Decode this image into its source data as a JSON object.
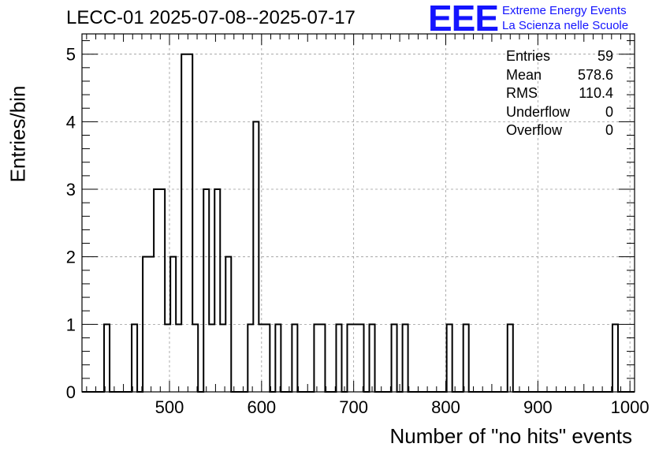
{
  "title": "LECC-01 2025-07-08--2025-07-17",
  "logo": {
    "mark": "EEE",
    "line1": "Extreme Energy Events",
    "line2": "La Scienza nelle Scuole",
    "color": "#1414ff"
  },
  "stats": [
    {
      "label": "Entries",
      "value": "59"
    },
    {
      "label": "Mean",
      "value": "578.6"
    },
    {
      "label": "RMS",
      "value": "110.4"
    },
    {
      "label": "Underflow",
      "value": "0"
    },
    {
      "label": "Overflow",
      "value": "0"
    }
  ],
  "chart_data": {
    "type": "bar",
    "title": "LECC-01 2025-07-08--2025-07-17",
    "xlabel": "Number of \"no hits\" events",
    "ylabel": "Entries/bin",
    "xlim": [
      405,
      1005
    ],
    "ylim": [
      0,
      5.3
    ],
    "bin_width": 6,
    "grid": true,
    "legend": "top-right statistics box",
    "x_ticks": [
      "500",
      "600",
      "700",
      "800",
      "900",
      "1000"
    ],
    "x_tick_values": [
      500,
      600,
      700,
      800,
      900,
      1000
    ],
    "y_ticks": [
      "0",
      "1",
      "2",
      "3",
      "4",
      "5"
    ],
    "y_tick_values": [
      0,
      1,
      2,
      3,
      4,
      5
    ],
    "bins": [
      {
        "x": 429,
        "count": 1
      },
      {
        "x": 459,
        "count": 1
      },
      {
        "x": 471,
        "count": 2
      },
      {
        "x": 477,
        "count": 2
      },
      {
        "x": 483,
        "count": 3
      },
      {
        "x": 489,
        "count": 3
      },
      {
        "x": 495,
        "count": 1
      },
      {
        "x": 501,
        "count": 2
      },
      {
        "x": 507,
        "count": 1
      },
      {
        "x": 513,
        "count": 5
      },
      {
        "x": 519,
        "count": 5
      },
      {
        "x": 525,
        "count": 1
      },
      {
        "x": 537,
        "count": 3
      },
      {
        "x": 543,
        "count": 1
      },
      {
        "x": 549,
        "count": 3
      },
      {
        "x": 555,
        "count": 1
      },
      {
        "x": 561,
        "count": 2
      },
      {
        "x": 585,
        "count": 1
      },
      {
        "x": 591,
        "count": 4
      },
      {
        "x": 597,
        "count": 1
      },
      {
        "x": 603,
        "count": 1
      },
      {
        "x": 615,
        "count": 1
      },
      {
        "x": 633,
        "count": 1
      },
      {
        "x": 657,
        "count": 1
      },
      {
        "x": 663,
        "count": 1
      },
      {
        "x": 681,
        "count": 1
      },
      {
        "x": 693,
        "count": 1
      },
      {
        "x": 699,
        "count": 1
      },
      {
        "x": 705,
        "count": 1
      },
      {
        "x": 717,
        "count": 1
      },
      {
        "x": 741,
        "count": 1
      },
      {
        "x": 753,
        "count": 1
      },
      {
        "x": 801,
        "count": 1
      },
      {
        "x": 819,
        "count": 1
      },
      {
        "x": 867,
        "count": 1
      },
      {
        "x": 981,
        "count": 1
      }
    ]
  }
}
